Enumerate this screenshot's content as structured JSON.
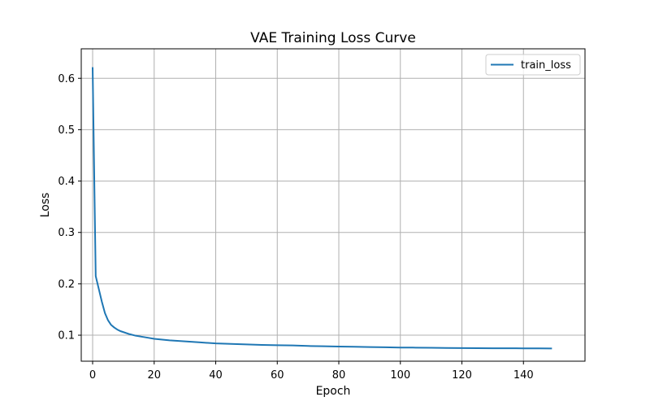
{
  "chart_data": {
    "type": "line",
    "title": "VAE Training Loss Curve",
    "xlabel": "Epoch",
    "ylabel": "Loss",
    "xlim": [
      -3.7,
      160
    ],
    "ylim": [
      0.0494,
      0.6574
    ],
    "xticks": [
      0,
      20,
      40,
      60,
      80,
      100,
      120,
      140
    ],
    "xtick_labels": [
      "0",
      "20",
      "40",
      "60",
      "80",
      "100",
      "120",
      "140"
    ],
    "yticks": [
      0.1,
      0.2,
      0.3,
      0.4,
      0.5,
      0.6
    ],
    "ytick_labels": [
      "0.1",
      "0.2",
      "0.3",
      "0.4",
      "0.5",
      "0.6"
    ],
    "grid": true,
    "legend_position": "top-right",
    "series": [
      {
        "name": "train_loss",
        "color": "#1f77b4",
        "x": [
          0,
          1,
          2,
          3,
          4,
          5,
          6,
          7,
          8,
          9,
          10,
          12,
          14,
          16,
          18,
          20,
          25,
          30,
          35,
          40,
          45,
          50,
          55,
          60,
          65,
          70,
          75,
          80,
          85,
          90,
          95,
          100,
          105,
          110,
          115,
          120,
          125,
          130,
          135,
          140,
          145,
          149
        ],
        "values": [
          0.62,
          0.215,
          0.19,
          0.165,
          0.143,
          0.129,
          0.12,
          0.115,
          0.111,
          0.108,
          0.106,
          0.102,
          0.099,
          0.097,
          0.095,
          0.093,
          0.09,
          0.088,
          0.086,
          0.084,
          0.083,
          0.082,
          0.081,
          0.0805,
          0.08,
          0.079,
          0.0785,
          0.078,
          0.0775,
          0.077,
          0.0765,
          0.076,
          0.0758,
          0.0755,
          0.0752,
          0.075,
          0.0748,
          0.0746,
          0.0745,
          0.0744,
          0.0743,
          0.0742
        ]
      }
    ]
  }
}
